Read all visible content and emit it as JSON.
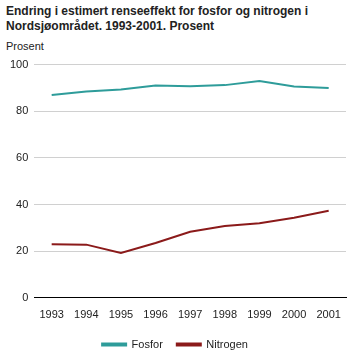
{
  "chart_data": {
    "type": "line",
    "title": "Endring i estimert renseeffekt for fosfor og nitrogen i Nordsjøområdet. 1993-2001. Prosent",
    "y_label": "Prosent",
    "categories": [
      "1993",
      "1994",
      "1995",
      "1996",
      "1997",
      "1998",
      "1999",
      "2000",
      "2001"
    ],
    "series": [
      {
        "name": "Fosfor",
        "color": "#2e9c9a",
        "values": [
          87,
          88.5,
          89.3,
          91,
          90.7,
          91.2,
          93,
          90.6,
          90
        ]
      },
      {
        "name": "Nitrogen",
        "color": "#8b1a1a",
        "values": [
          23,
          22.8,
          19.2,
          23.5,
          28.3,
          30.8,
          32,
          34.3,
          37.3
        ]
      }
    ],
    "ylim": [
      0,
      100
    ],
    "yticks": [
      0,
      20,
      40,
      60,
      80,
      100
    ],
    "grid": true,
    "legend": "bottom"
  }
}
